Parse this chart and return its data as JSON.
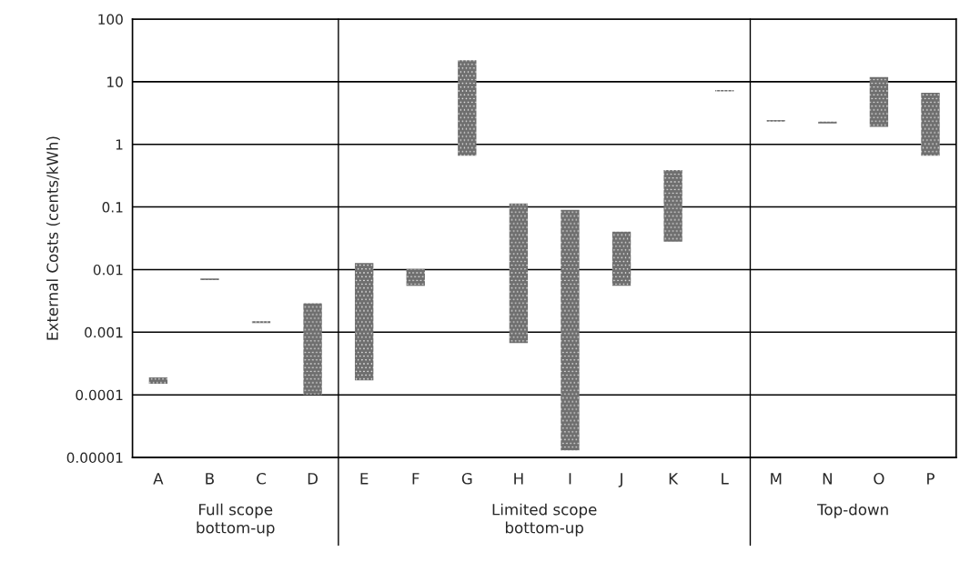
{
  "chart_data": {
    "type": "bar",
    "ylabel": "External Costs (cents/kWh)",
    "categories": [
      "A",
      "B",
      "C",
      "D",
      "E",
      "F",
      "G",
      "H",
      "I",
      "J",
      "K",
      "L",
      "M",
      "N",
      "O",
      "P"
    ],
    "series": [
      {
        "color": "#6e6e6e",
        "base": [
          0.00015,
          0.0068,
          0.0014,
          0.0001,
          0.00017,
          0.0055,
          0.66,
          0.00067,
          1.3e-05,
          0.0055,
          0.028,
          7.0,
          2.3,
          2.15,
          1.9,
          0.66
        ],
        "values": [
          4e-05,
          0.0004,
          0.0001,
          0.0028,
          0.0126,
          0.0047,
          21.3,
          0.113,
          0.09,
          0.035,
          0.36,
          0.4,
          0.15,
          0.15,
          10,
          6
        ]
      }
    ],
    "log": "y",
    "ylim": [
      1e-05,
      100
    ],
    "yticks": [
      {
        "value": 1e-05,
        "label": "0.00001"
      },
      {
        "value": 0.0001,
        "label": "0.0001"
      },
      {
        "value": 0.001,
        "label": "0.001"
      },
      {
        "value": 0.01,
        "label": "0.01"
      },
      {
        "value": 0.1,
        "label": "0.1"
      },
      1,
      10,
      100
    ],
    "grid": "y",
    "annotations": [
      "Full scope\nbottom-up",
      "Limited scope\nbottom-up",
      "Top-down"
    ]
  }
}
